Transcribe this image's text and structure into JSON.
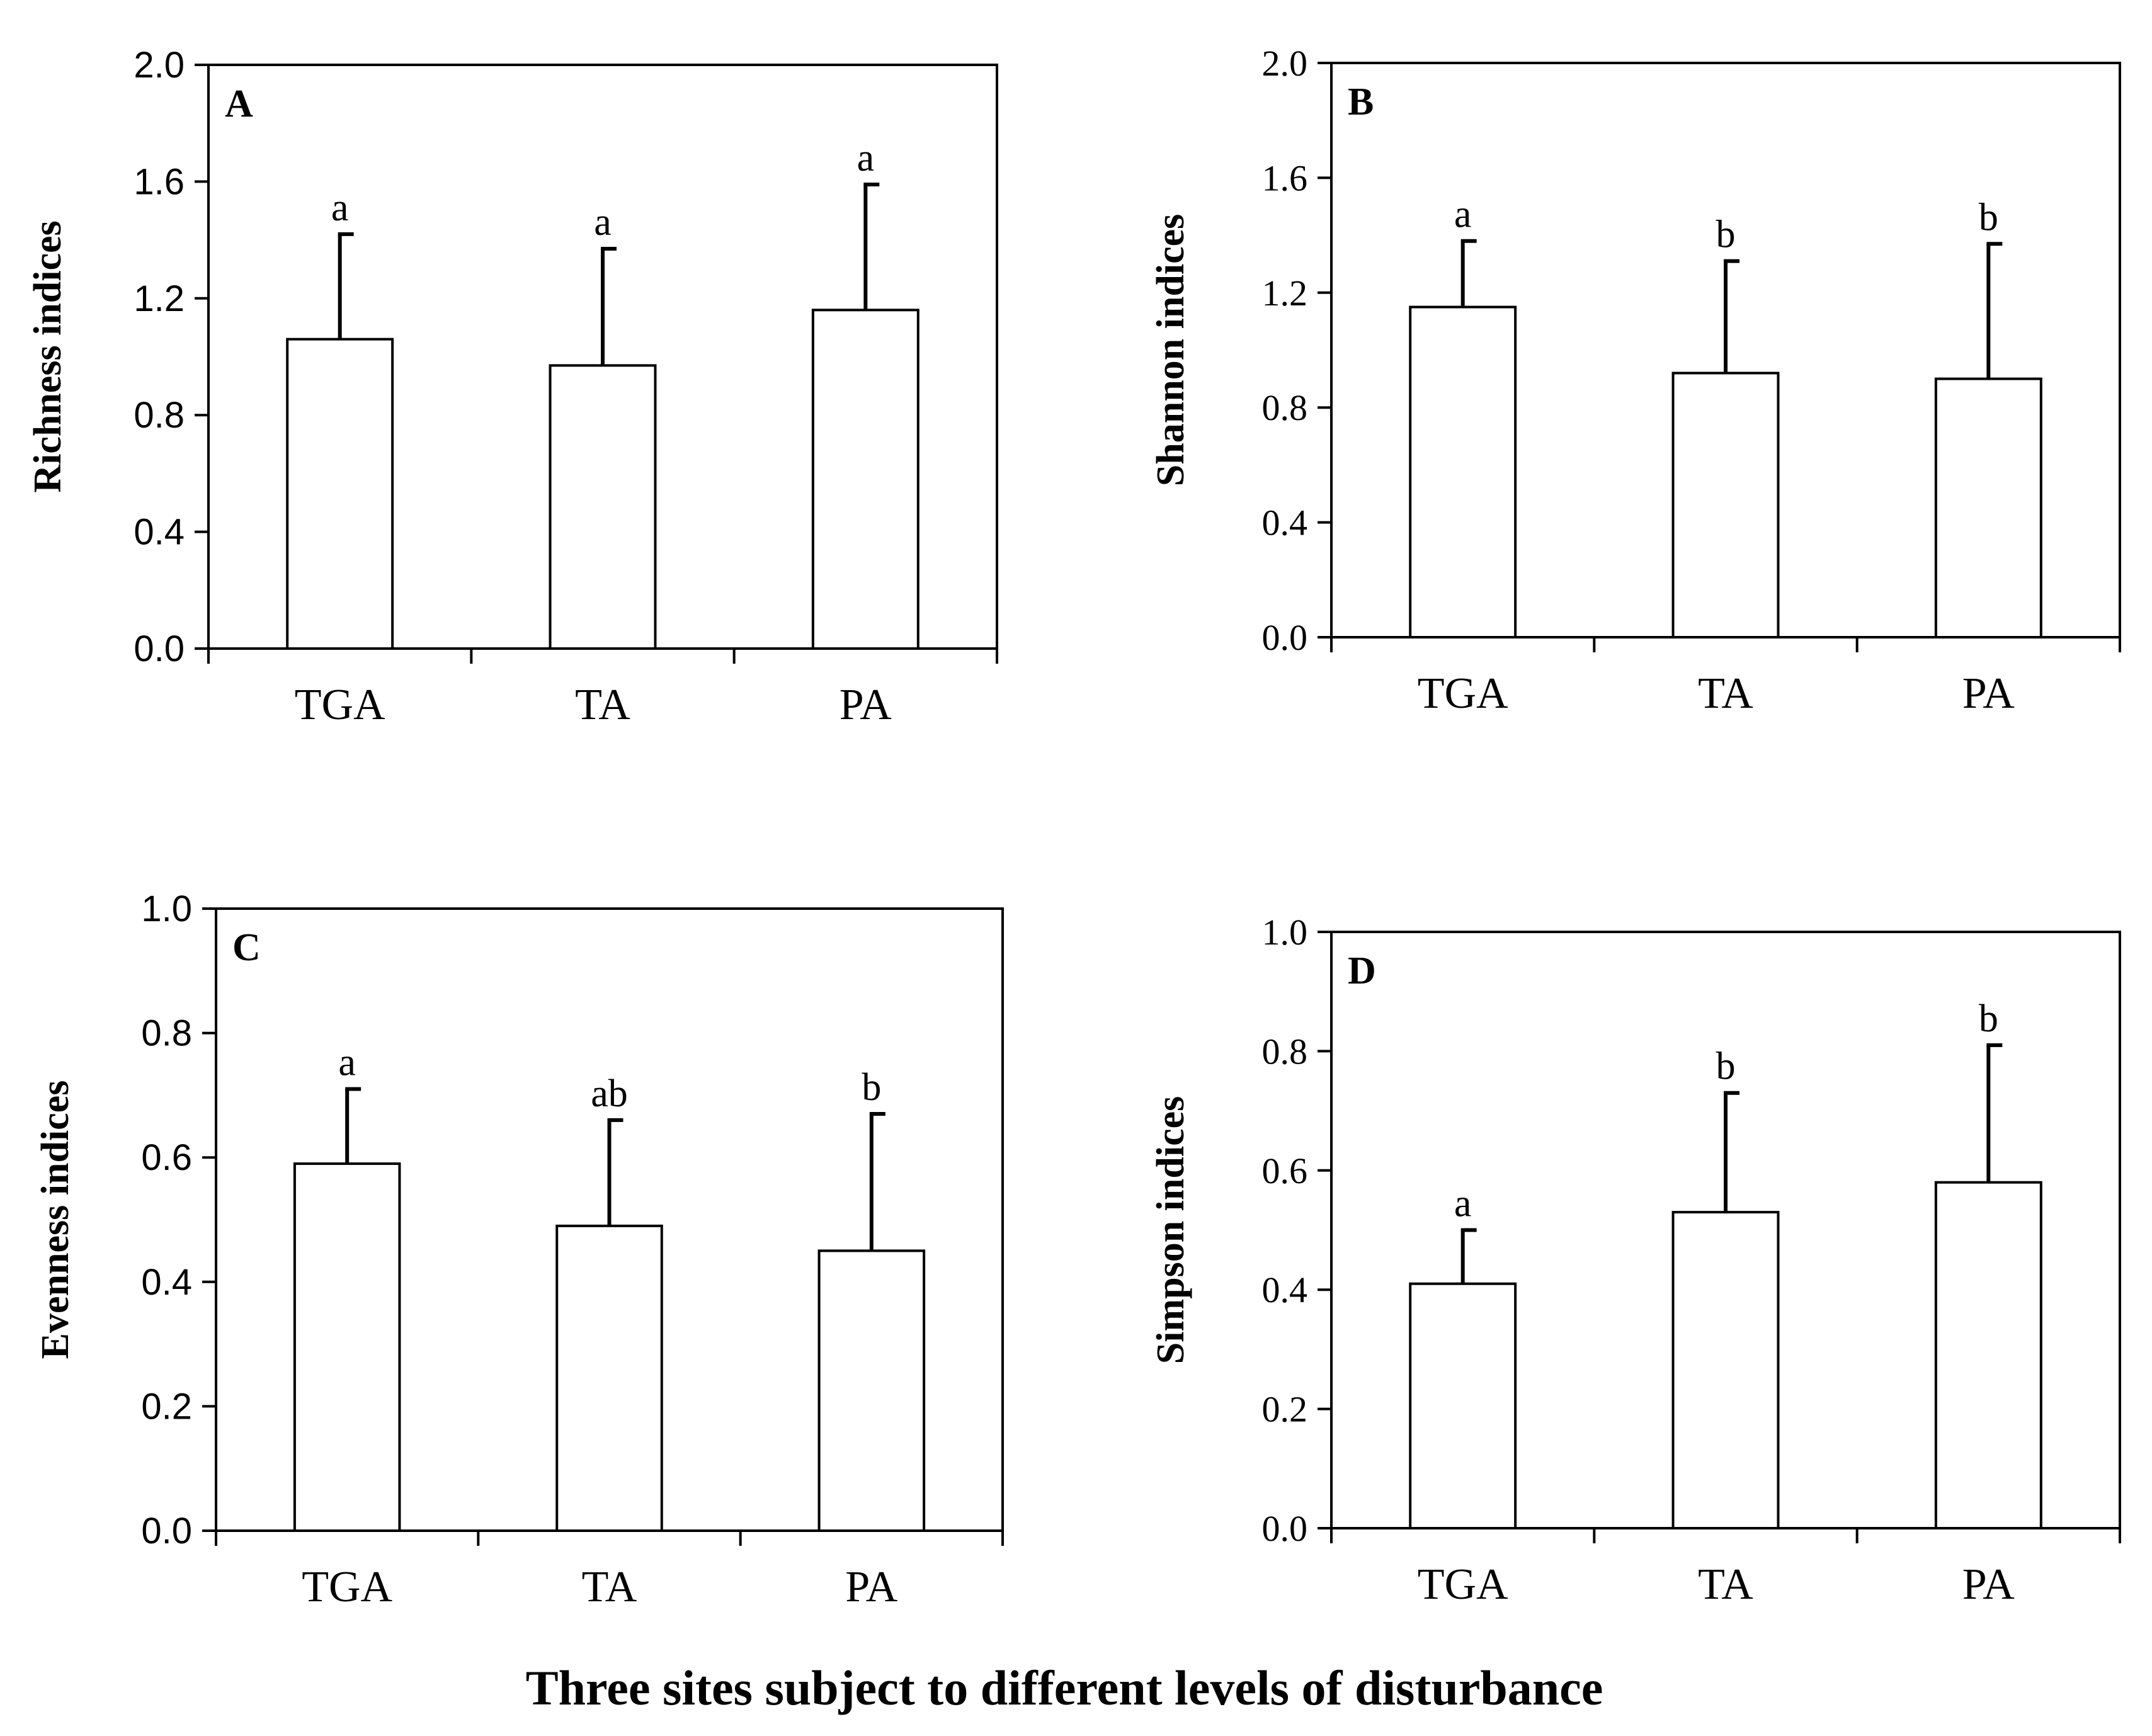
{
  "figure_caption": "Three sites subject to different levels of disturbance",
  "chart_data": [
    {
      "type": "bar",
      "panel": "A",
      "ylabel": "Richness indices",
      "categories": [
        "TGA",
        "TA",
        "PA"
      ],
      "values": [
        1.06,
        0.97,
        1.16
      ],
      "errors": [
        0.36,
        0.4,
        0.43
      ],
      "significance": [
        "a",
        "a",
        "a"
      ],
      "ylim": [
        0,
        2.0
      ],
      "yticks": [
        "0.0",
        "0.4",
        "0.8",
        "1.2",
        "1.6",
        "2.0"
      ]
    },
    {
      "type": "bar",
      "panel": "B",
      "ylabel": "Shannon indices",
      "categories": [
        "TGA",
        "TA",
        "PA"
      ],
      "values": [
        1.15,
        0.92,
        0.9
      ],
      "errors": [
        0.23,
        0.39,
        0.47
      ],
      "significance": [
        "a",
        "b",
        "b"
      ],
      "ylim": [
        0,
        2.0
      ],
      "yticks": [
        "0.0",
        "0.4",
        "0.8",
        "1.2",
        "1.6",
        "2.0"
      ]
    },
    {
      "type": "bar",
      "panel": "C",
      "ylabel": "Evenness indices",
      "categories": [
        "TGA",
        "TA",
        "PA"
      ],
      "values": [
        0.59,
        0.49,
        0.45
      ],
      "errors": [
        0.12,
        0.17,
        0.22
      ],
      "significance": [
        "a",
        "ab",
        "b"
      ],
      "ylim": [
        0,
        1.0
      ],
      "yticks": [
        "0.0",
        "0.2",
        "0.4",
        "0.6",
        "0.8",
        "1.0"
      ]
    },
    {
      "type": "bar",
      "panel": "D",
      "ylabel": "Simpson indices",
      "categories": [
        "TGA",
        "TA",
        "PA"
      ],
      "values": [
        0.41,
        0.53,
        0.58
      ],
      "errors": [
        0.09,
        0.2,
        0.23
      ],
      "significance": [
        "a",
        "b",
        "b"
      ],
      "ylim": [
        0,
        1.0
      ],
      "yticks": [
        "0.0",
        "0.2",
        "0.4",
        "0.6",
        "0.8",
        "1.0"
      ]
    }
  ]
}
